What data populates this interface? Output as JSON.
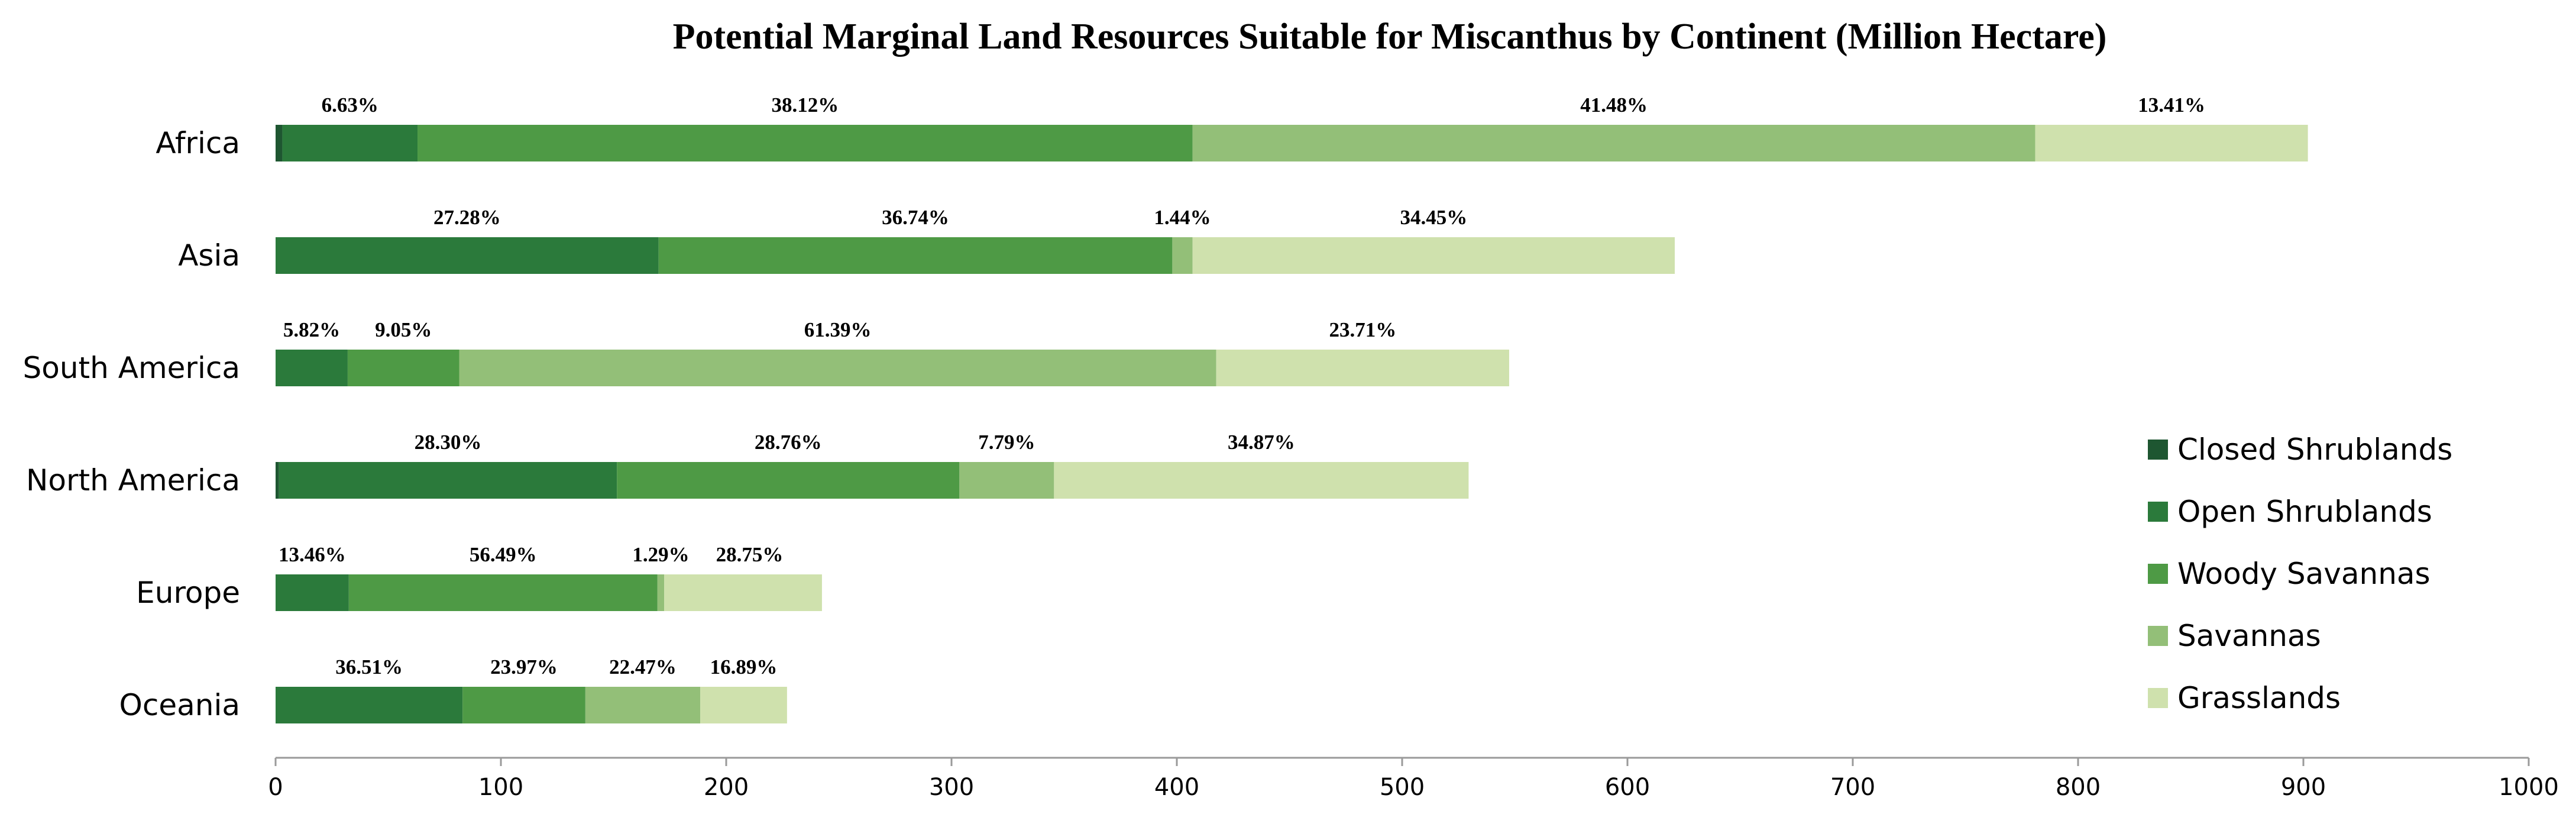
{
  "chart_data": {
    "type": "bar",
    "orientation": "horizontal",
    "stacked": true,
    "title": "Potential Marginal Land Resources Suitable for Miscanthus by Continent (Million Hectare)",
    "xlabel": "",
    "ylabel": "",
    "xlim": [
      0,
      1000
    ],
    "xticks": [
      0,
      100,
      200,
      300,
      400,
      500,
      600,
      700,
      800,
      900,
      1000
    ],
    "grid": false,
    "legend_position": "right",
    "categories": [
      "Africa",
      "Asia",
      "South America",
      "North America",
      "Europe",
      "Oceania"
    ],
    "series": [
      {
        "name": "Closed Shrublands",
        "color": "#1e5631",
        "values": [
          3,
          0,
          0,
          1.5,
          0,
          0
        ]
      },
      {
        "name": "Open Shrublands",
        "color": "#2b7a3b",
        "values": [
          60,
          170,
          32,
          150,
          32.5,
          83
        ]
      },
      {
        "name": "Woody Savannas",
        "color": "#4e9a45",
        "values": [
          344,
          228,
          49.5,
          152,
          137,
          54.5
        ]
      },
      {
        "name": "Savannas",
        "color": "#93bf78",
        "values": [
          374,
          9,
          336,
          42,
          3,
          51
        ]
      },
      {
        "name": "Grasslands",
        "color": "#cfe1ad",
        "values": [
          121,
          214,
          130,
          184,
          70,
          38.5
        ]
      }
    ],
    "data_labels": [
      [
        "6.63%",
        "38.12%",
        "41.48%",
        "13.41%"
      ],
      [
        "27.28%",
        "36.74%",
        "1.44%",
        "34.45%"
      ],
      [
        "5.82%",
        "9.05%",
        "61.39%",
        "23.71%"
      ],
      [
        "28.30%",
        "28.76%",
        "7.79%",
        "34.87%"
      ],
      [
        "13.46%",
        "56.49%",
        "1.29%",
        "28.75%"
      ],
      [
        "36.51%",
        "23.97%",
        "22.47%",
        "16.89%"
      ]
    ],
    "data_label_series": [
      [
        "Open Shrublands",
        "Woody Savannas",
        "Savannas",
        "Grasslands"
      ],
      [
        "Open Shrublands",
        "Woody Savannas",
        "Savannas",
        "Grasslands"
      ],
      [
        "Open Shrublands",
        "Woody Savannas",
        "Savannas",
        "Grasslands"
      ],
      [
        "Open Shrublands",
        "Woody Savannas",
        "Savannas",
        "Grasslands"
      ],
      [
        "Open Shrublands",
        "Woody Savannas",
        "Savannas",
        "Grasslands"
      ],
      [
        "Open Shrublands",
        "Woody Savannas",
        "Savannas",
        "Grasslands"
      ]
    ]
  }
}
